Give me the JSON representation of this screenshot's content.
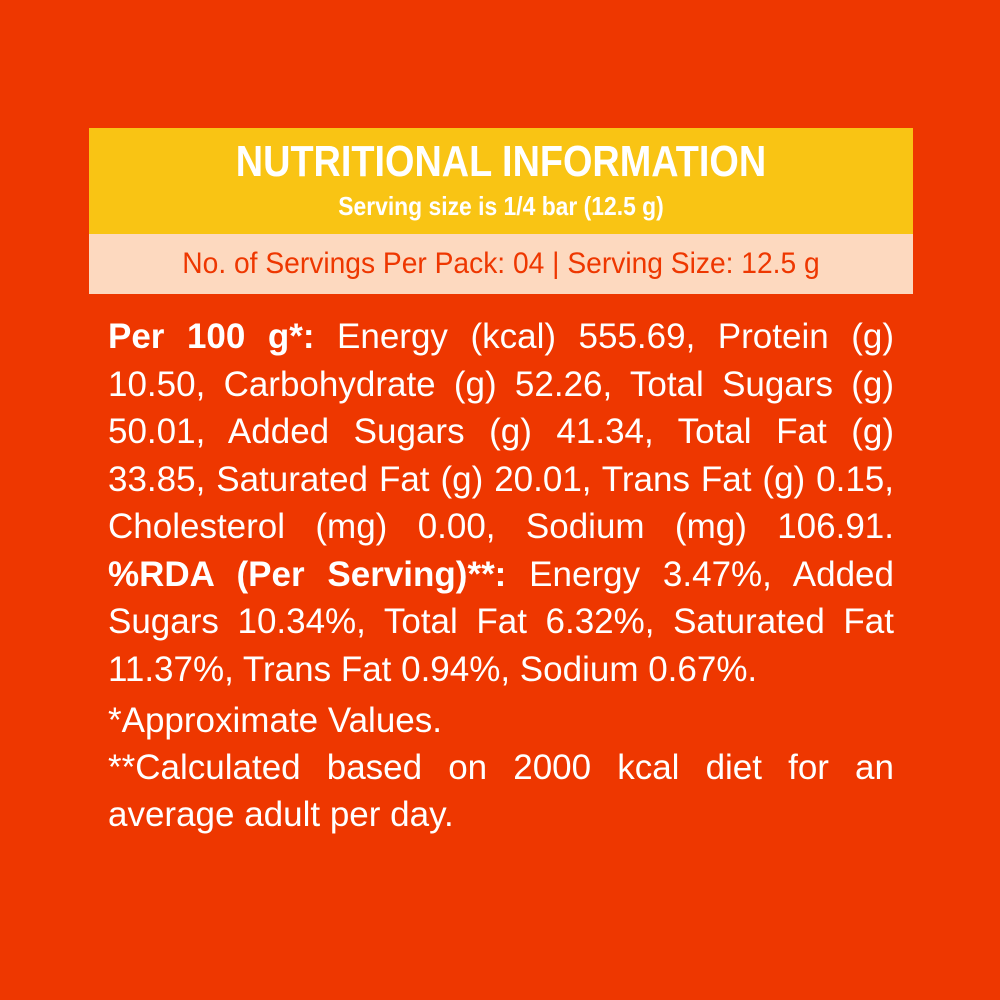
{
  "header": {
    "title": "NUTRITIONAL INFORMATION",
    "subtitle": "Serving size is 1/4 bar (12.5 g)"
  },
  "servings": {
    "text": "No. of Servings Per Pack: 04 | Serving Size: 12.5 g"
  },
  "per100": {
    "label": "Per 100 g*:",
    "text": " Energy (kcal) 555.69, Protein (g) 10.50, Carbohydrate (g) 52.26, Total Sugars (g) 50.01, Added Sugars (g) 41.34, Total Fat (g) 33.85, Saturated Fat (g) 20.01, Trans Fat (g) 0.15, Cholesterol (mg) 0.00, Sodium (mg) 106.91. "
  },
  "rda": {
    "label": "%RDA (Per Serving)**:",
    "text": " Energy 3.47%, Added Sugars 10.34%, Total Fat 6.32%, Saturated Fat 11.37%, Trans Fat 0.94%, Sodium 0.67%."
  },
  "notes": {
    "approx": "*Approximate Values.",
    "calc": "**Calculated based on 2000 kcal diet for an average adult per day."
  },
  "colors": {
    "background": "#ee3700",
    "header_band": "#f9c414",
    "servings_band": "#fdd9bf",
    "text": "#ffffff"
  }
}
